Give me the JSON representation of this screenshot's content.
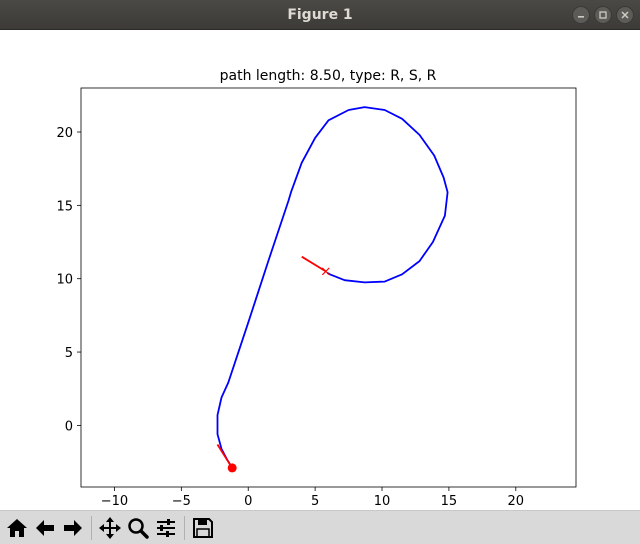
{
  "window": {
    "title": "Figure 1",
    "controls": [
      "minimize-icon",
      "maximize-icon",
      "close-icon"
    ]
  },
  "chart_data": {
    "type": "line",
    "title": "path length: 8.50, type: R, S, R",
    "xlabel": "",
    "ylabel": "",
    "xlim": [
      -12.5,
      24.5
    ],
    "ylim": [
      -4.2,
      23.0
    ],
    "xticks": [
      -10,
      -5,
      0,
      5,
      10,
      15,
      20
    ],
    "xtick_labels": [
      "−10",
      "−5",
      "0",
      "5",
      "10",
      "15",
      "20"
    ],
    "yticks": [
      0,
      5,
      10,
      15,
      20
    ],
    "ytick_labels": [
      "0",
      "5",
      "10",
      "15",
      "20"
    ],
    "grid": false,
    "series": [
      {
        "color": "#0000ff",
        "x": [
          -1.2,
          -1.6,
          -2.0,
          -2.3,
          -2.3,
          -2.0,
          -1.5,
          0,
          1.5,
          3.0,
          3.2,
          4.0,
          5.0,
          6.0,
          7.5,
          8.7,
          10.2,
          11.5,
          12.8,
          13.9,
          14.6,
          14.9,
          14.7,
          13.8,
          12.8,
          11.5,
          10.2,
          8.7,
          7.2,
          6.1,
          5.9
        ],
        "y": [
          -2.9,
          -2.3,
          -1.6,
          -0.6,
          0.7,
          1.9,
          2.9,
          7.0,
          11.2,
          15.3,
          15.9,
          17.9,
          19.6,
          20.8,
          21.5,
          21.7,
          21.5,
          20.9,
          19.8,
          18.4,
          16.9,
          15.9,
          14.3,
          12.5,
          11.2,
          10.3,
          9.8,
          9.75,
          9.9,
          10.3,
          10.4
        ]
      }
    ],
    "start_marker": {
      "x": -1.2,
      "y": -2.9,
      "color": "#ff0000",
      "shape": "circle"
    },
    "start_heading": {
      "x": [
        -2.3,
        -1.2
      ],
      "y": [
        -1.3,
        -2.9
      ],
      "color": "#ff0000"
    },
    "goal_marker": {
      "x": 5.8,
      "y": 10.5,
      "color": "#ff0000",
      "shape": "x"
    },
    "goal_heading": {
      "x": [
        4.0,
        5.8
      ],
      "y": [
        11.5,
        10.5
      ],
      "color": "#ff0000"
    }
  },
  "toolbar": {
    "buttons": [
      {
        "name": "home-button",
        "icon": "home-icon"
      },
      {
        "name": "back-button",
        "icon": "back-arrow-icon"
      },
      {
        "name": "forward-button",
        "icon": "forward-arrow-icon"
      },
      {
        "name": "pan-button",
        "icon": "move-icon"
      },
      {
        "name": "zoom-button",
        "icon": "magnifier-icon"
      },
      {
        "name": "configure-subplots-button",
        "icon": "sliders-icon"
      },
      {
        "name": "save-button",
        "icon": "save-icon"
      }
    ]
  }
}
